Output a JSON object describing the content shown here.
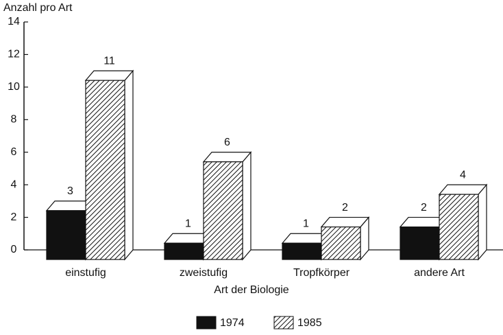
{
  "chart_data": {
    "type": "bar3d",
    "y_axis_label": "Anzahl pro Art",
    "x_axis_label": "Art der Biologie",
    "categories": [
      "einstufig",
      "zweistufig",
      "Tropfkörper",
      "andere Art"
    ],
    "series": [
      {
        "name": "1974",
        "color": "#111111",
        "values": [
          3,
          1,
          1,
          2
        ]
      },
      {
        "name": "1985",
        "color": "hatch",
        "values": [
          11,
          6,
          2,
          4
        ]
      }
    ],
    "ylim": [
      0,
      14
    ],
    "yticks": [
      0,
      2,
      4,
      6,
      8,
      10,
      12,
      14
    ]
  }
}
